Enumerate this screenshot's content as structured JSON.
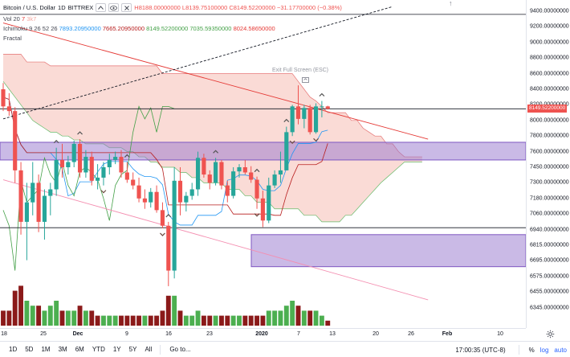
{
  "legend": {
    "symbol": "Bitcoin / U.S. Dollar",
    "interval": "1D",
    "exchange": "BITTREX",
    "collapse_icon": "chevron-up-icon",
    "visibility_icon": "eye-icon",
    "close_icon": "close-icon",
    "ohlc": "H8188.00000000 L8139.75100000 C8149.52200000 −31.17700000 (−0.38%)",
    "volume_label": "Vol 20",
    "volume_value": "7",
    "volume_value2": "3k7",
    "ichimoku_label": "Ichimoku 9 26 52 26",
    "ichimoku_v1": "7893.20950000",
    "ichimoku_v2": "7665.20950000",
    "ichimoku_v3": "8149.52200000",
    "ichimoku_v4": "7035.59350000",
    "ichimoku_v5": "8024.58650000",
    "fractal_label": "Fractal"
  },
  "overlay": {
    "exit_full_screen": "Exit Full Screen (ESC)"
  },
  "price_axis": {
    "ticks": [
      "9400.00000000",
      "9200.00000000",
      "9000.00000000",
      "8800.00000000",
      "8600.00000000",
      "8400.00000000",
      "8200.00000000",
      "8000.00000000",
      "7800.00000000",
      "7600.00000000",
      "7450.00000000",
      "7300.00000000",
      "7180.00000000",
      "7060.00000000",
      "6940.00000000",
      "6815.00000000",
      "6695.00000000",
      "6575.00000000",
      "6455.00000000",
      "6345.00000000"
    ],
    "current_price": "8149.52200000"
  },
  "time_axis": {
    "ticks": [
      "18",
      "25",
      "Dec",
      "9",
      "16",
      "23",
      "2020",
      "7",
      "13",
      "20",
      "26",
      "Feb",
      "10"
    ],
    "settings_icon": "gear-icon"
  },
  "bottom_bar": {
    "ranges": [
      "1D",
      "5D",
      "1M",
      "3M",
      "6M",
      "YTD",
      "1Y",
      "5Y",
      "All"
    ],
    "goto": "Go to...",
    "clock": "17:00:35 (UTC-8)",
    "percent": "%",
    "log": "log",
    "auto": "auto"
  },
  "colors": {
    "up": "#26a69a",
    "down": "#ef5350",
    "volume_up": "#4caf50",
    "volume_down": "#8b1a1a",
    "cloud_bear": "#f8c7c0",
    "zone": "#9575cd",
    "trendline": "#e53935"
  },
  "chart_data": {
    "type": "candlestick",
    "symbol": "Bitcoin / U.S. Dollar",
    "interval": "1D",
    "exchange": "BITTREX",
    "x_ticks": [
      "18",
      "25",
      "Dec",
      "9",
      "16",
      "23",
      "2020",
      "7",
      "13",
      "20",
      "26",
      "Feb",
      "10"
    ],
    "y_ticks": [
      9400,
      9200,
      9000,
      8800,
      8600,
      8400,
      8200,
      8000,
      7800,
      7600,
      7450,
      7300,
      7180,
      7060,
      6940,
      6815,
      6695,
      6575,
      6455,
      6345
    ],
    "last_close": 8149.522,
    "last_change": -31.177,
    "last_change_pct": -0.38,
    "last_high": 8188.0,
    "last_low": 8139.751,
    "candles": [
      {
        "o": 8400,
        "h": 8480,
        "l": 8120,
        "c": 8180
      },
      {
        "o": 8180,
        "h": 8350,
        "l": 8060,
        "c": 8120
      },
      {
        "o": 8120,
        "h": 8170,
        "l": 7300,
        "c": 7420
      },
      {
        "o": 7420,
        "h": 7500,
        "l": 6900,
        "c": 7000
      },
      {
        "o": 7000,
        "h": 7300,
        "l": 6700,
        "c": 7150
      },
      {
        "o": 7150,
        "h": 7500,
        "l": 7050,
        "c": 7300
      },
      {
        "o": 7300,
        "h": 7380,
        "l": 6920,
        "c": 7000
      },
      {
        "o": 7000,
        "h": 7250,
        "l": 6860,
        "c": 7200
      },
      {
        "o": 7200,
        "h": 7300,
        "l": 7050,
        "c": 7250
      },
      {
        "o": 7250,
        "h": 7650,
        "l": 7200,
        "c": 7520
      },
      {
        "o": 7520,
        "h": 7700,
        "l": 7350,
        "c": 7450
      },
      {
        "o": 7450,
        "h": 7560,
        "l": 7380,
        "c": 7500
      },
      {
        "o": 7500,
        "h": 7740,
        "l": 7450,
        "c": 7700
      },
      {
        "o": 7700,
        "h": 7760,
        "l": 7350,
        "c": 7400
      },
      {
        "o": 7400,
        "h": 7620,
        "l": 7350,
        "c": 7550
      },
      {
        "o": 7550,
        "h": 7600,
        "l": 7280,
        "c": 7320
      },
      {
        "o": 7320,
        "h": 7480,
        "l": 7250,
        "c": 7350
      },
      {
        "o": 7350,
        "h": 7500,
        "l": 7280,
        "c": 7450
      },
      {
        "o": 7450,
        "h": 7580,
        "l": 7380,
        "c": 7520
      },
      {
        "o": 7520,
        "h": 7600,
        "l": 7480,
        "c": 7550
      },
      {
        "o": 7550,
        "h": 7620,
        "l": 7350,
        "c": 7400
      },
      {
        "o": 7400,
        "h": 7500,
        "l": 7300,
        "c": 7330
      },
      {
        "o": 7330,
        "h": 7400,
        "l": 7250,
        "c": 7280
      },
      {
        "o": 7280,
        "h": 7350,
        "l": 7150,
        "c": 7180
      },
      {
        "o": 7180,
        "h": 7250,
        "l": 7100,
        "c": 7150
      },
      {
        "o": 7150,
        "h": 7260,
        "l": 7110,
        "c": 7230
      },
      {
        "o": 7230,
        "h": 7280,
        "l": 7070,
        "c": 7090
      },
      {
        "o": 7090,
        "h": 7150,
        "l": 6950,
        "c": 6970
      },
      {
        "o": 6970,
        "h": 7000,
        "l": 6500,
        "c": 6620
      },
      {
        "o": 6620,
        "h": 7450,
        "l": 6560,
        "c": 7320
      },
      {
        "o": 7320,
        "h": 7450,
        "l": 7050,
        "c": 7150
      },
      {
        "o": 7150,
        "h": 7230,
        "l": 7080,
        "c": 7200
      },
      {
        "o": 7200,
        "h": 7300,
        "l": 7170,
        "c": 7250
      },
      {
        "o": 7250,
        "h": 7600,
        "l": 7200,
        "c": 7540
      },
      {
        "o": 7540,
        "h": 7580,
        "l": 7350,
        "c": 7380
      },
      {
        "o": 7380,
        "h": 7420,
        "l": 7250,
        "c": 7300
      },
      {
        "o": 7300,
        "h": 7540,
        "l": 7280,
        "c": 7500
      },
      {
        "o": 7500,
        "h": 7520,
        "l": 7250,
        "c": 7280
      },
      {
        "o": 7280,
        "h": 7320,
        "l": 7150,
        "c": 7200
      },
      {
        "o": 7200,
        "h": 7450,
        "l": 7180,
        "c": 7410
      },
      {
        "o": 7410,
        "h": 7480,
        "l": 7350,
        "c": 7450
      },
      {
        "o": 7450,
        "h": 7520,
        "l": 7380,
        "c": 7400
      },
      {
        "o": 7400,
        "h": 7460,
        "l": 7300,
        "c": 7330
      },
      {
        "o": 7330,
        "h": 7360,
        "l": 7100,
        "c": 7180
      },
      {
        "o": 7180,
        "h": 7240,
        "l": 6960,
        "c": 7010
      },
      {
        "o": 7010,
        "h": 7350,
        "l": 6990,
        "c": 7280
      },
      {
        "o": 7280,
        "h": 7420,
        "l": 7260,
        "c": 7380
      },
      {
        "o": 7380,
        "h": 7600,
        "l": 7300,
        "c": 7420
      },
      {
        "o": 7420,
        "h": 7920,
        "l": 7420,
        "c": 7850
      },
      {
        "o": 7850,
        "h": 8200,
        "l": 7800,
        "c": 8180
      },
      {
        "o": 8180,
        "h": 8450,
        "l": 7950,
        "c": 8020
      },
      {
        "o": 8020,
        "h": 8200,
        "l": 7900,
        "c": 8160
      },
      {
        "o": 8160,
        "h": 8200,
        "l": 7820,
        "c": 7850
      },
      {
        "o": 7850,
        "h": 8220,
        "l": 7830,
        "c": 8180
      },
      {
        "o": 8180,
        "h": 8250,
        "l": 8040,
        "c": 8180
      },
      {
        "o": 8180,
        "h": 8188,
        "l": 8139.751,
        "c": 8149.522
      }
    ],
    "volume": [
      {
        "v": 3,
        "up": false
      },
      {
        "v": 3,
        "up": false
      },
      {
        "v": 7,
        "up": false
      },
      {
        "v": 8,
        "up": false
      },
      {
        "v": 5,
        "up": true
      },
      {
        "v": 4,
        "up": true
      },
      {
        "v": 4,
        "up": false
      },
      {
        "v": 3,
        "up": true
      },
      {
        "v": 4,
        "up": true
      },
      {
        "v": 5,
        "up": true
      },
      {
        "v": 3,
        "up": false
      },
      {
        "v": 3,
        "up": true
      },
      {
        "v": 3,
        "up": true
      },
      {
        "v": 4,
        "up": false
      },
      {
        "v": 3,
        "up": true
      },
      {
        "v": 3,
        "up": false
      },
      {
        "v": 2,
        "up": false
      },
      {
        "v": 2,
        "up": true
      },
      {
        "v": 2,
        "up": true
      },
      {
        "v": 2,
        "up": true
      },
      {
        "v": 2,
        "up": false
      },
      {
        "v": 2,
        "up": false
      },
      {
        "v": 2,
        "up": false
      },
      {
        "v": 2,
        "up": false
      },
      {
        "v": 2,
        "up": true
      },
      {
        "v": 2,
        "up": false
      },
      {
        "v": 2,
        "up": false
      },
      {
        "v": 3,
        "up": false
      },
      {
        "v": 6,
        "up": false
      },
      {
        "v": 6,
        "up": true
      },
      {
        "v": 3,
        "up": false
      },
      {
        "v": 2,
        "up": true
      },
      {
        "v": 2,
        "up": true
      },
      {
        "v": 3,
        "up": true
      },
      {
        "v": 2,
        "up": false
      },
      {
        "v": 2,
        "up": false
      },
      {
        "v": 2,
        "up": true
      },
      {
        "v": 2,
        "up": false
      },
      {
        "v": 2,
        "up": false
      },
      {
        "v": 2,
        "up": true
      },
      {
        "v": 2,
        "up": true
      },
      {
        "v": 2,
        "up": false
      },
      {
        "v": 2,
        "up": false
      },
      {
        "v": 2,
        "up": false
      },
      {
        "v": 2,
        "up": false
      },
      {
        "v": 3,
        "up": true
      },
      {
        "v": 3,
        "up": true
      },
      {
        "v": 3,
        "up": true
      },
      {
        "v": 4,
        "up": true
      },
      {
        "v": 5,
        "up": true
      },
      {
        "v": 4,
        "up": false
      },
      {
        "v": 3,
        "up": true
      },
      {
        "v": 3,
        "up": false
      },
      {
        "v": 3,
        "up": true
      },
      {
        "v": 2,
        "up": true
      },
      {
        "v": 1,
        "up": false
      }
    ],
    "zones": [
      {
        "from": 7520,
        "to": 7720
      },
      {
        "from": 6650,
        "to": 6900
      }
    ],
    "horizontal_lines": [
      9360,
      8149.522,
      6955
    ],
    "trendlines": [
      {
        "p1": {
          "bar": 0,
          "price": 9250
        },
        "p2": {
          "bar": 72,
          "price": 7760
        },
        "style": "solid",
        "color": "#e53935"
      },
      {
        "p1": {
          "bar": 0,
          "price": 8020
        },
        "p2": {
          "bar": 66,
          "price": 9460
        },
        "style": "dashed",
        "color": "#131722"
      },
      {
        "p1": {
          "bar": 0,
          "price": 7330
        },
        "p2": {
          "bar": 72,
          "price": 6400
        },
        "style": "solid",
        "color": "#f48fb1"
      }
    ],
    "cloud_top": [
      8850,
      8850,
      8850,
      8850,
      8750,
      8750,
      8750,
      8750,
      8700,
      8700,
      8700,
      8700,
      8700,
      8700,
      8700,
      8700,
      8700,
      8700,
      8700,
      8700,
      8700,
      8700,
      8700,
      8700,
      8700,
      8700,
      8700,
      8600,
      8600,
      8600,
      8600,
      8600,
      8600,
      8600,
      8600,
      8600,
      8600,
      8600,
      8600,
      8600,
      8600,
      8600,
      8600,
      8600,
      8600,
      8600,
      8600,
      8600,
      8600,
      8600,
      8500,
      8400,
      8300,
      8250,
      8180,
      8100,
      8100,
      8100,
      8100,
      8000,
      8000,
      7900,
      7850,
      7800,
      7800,
      7700,
      7700,
      7600,
      7550,
      7550,
      7550,
      7550
    ],
    "cloud_bottom": [
      8500,
      8400,
      8300,
      8200,
      8100,
      8000,
      7950,
      7900,
      7850,
      7850,
      7800,
      7800,
      7750,
      7750,
      7700,
      7700,
      7700,
      7700,
      7650,
      7650,
      7650,
      7600,
      7600,
      7550,
      7550,
      7500,
      7500,
      7450,
      7450,
      7450,
      7400,
      7400,
      7350,
      7350,
      7300,
      7300,
      7300,
      7300,
      7250,
      7250,
      7250,
      7200,
      7200,
      7150,
      7150,
      7150,
      7100,
      7100,
      7100,
      7100,
      7100,
      7050,
      7050,
      7050,
      7000,
      7000,
      7000,
      7000,
      7050,
      7050,
      7100,
      7150,
      7200,
      7250,
      7300,
      7350,
      7400,
      7450,
      7500,
      7500,
      7500,
      7500
    ],
    "fractal_up_bars": [
      9,
      13,
      21,
      28,
      36,
      43,
      48,
      54
    ],
    "fractal_down_bars": [
      17,
      27,
      43,
      49,
      53
    ],
    "ichimoku": {
      "conversion": 7893.2095,
      "base": 7665.2095,
      "lagging": 8149.522,
      "span_a": 7035.5935,
      "span_b": 8024.5865
    }
  }
}
